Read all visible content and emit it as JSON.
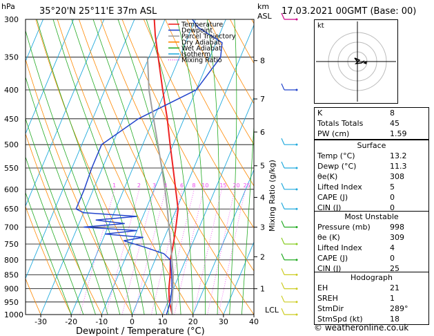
{
  "header": {
    "left": "35°20'N  25°11'E  37m  ASL",
    "right": "17.03.2021  00GMT  (Base: 00)",
    "hpa_label": "hPa",
    "km_label": "km",
    "asl_label": "ASL"
  },
  "legend": [
    "Temperature",
    "Dewpoint",
    "Parcel Trajectory",
    "Dry Adiabat",
    "Wet Adiabat",
    "Isotherm",
    "Mixing Ratio"
  ],
  "colors": {
    "temperature": "#ee2222",
    "dewpoint": "#2244cc",
    "parcel": "#a0a0a0",
    "dry_adiabat": "#ff8800",
    "wet_adiabat": "#22aa22",
    "isotherm": "#22aadd",
    "mixing_ratio": "#ee44ee"
  },
  "chart_data": {
    "type": "line",
    "xlabel": "Dewpoint / Temperature (°C)",
    "ylabel": "Mixing Ratio (g/kg)",
    "xlim": [
      -35,
      40
    ],
    "ylim_hpa": [
      1000,
      300
    ],
    "x_ticks": [
      -30,
      -20,
      -10,
      0,
      10,
      20,
      30,
      40
    ],
    "pressure_ticks": [
      300,
      350,
      400,
      450,
      500,
      550,
      600,
      650,
      700,
      750,
      800,
      850,
      900,
      950,
      1000
    ],
    "km_ticks": [
      {
        "km": "1",
        "p": 900
      },
      {
        "km": "2",
        "p": 790
      },
      {
        "km": "3",
        "p": 700
      },
      {
        "km": "4",
        "p": 620
      },
      {
        "km": "5",
        "p": 545
      },
      {
        "km": "6",
        "p": 475
      },
      {
        "km": "7",
        "p": 415
      },
      {
        "km": "8",
        "p": 355
      }
    ],
    "lcl_label": "LCL",
    "mixing_ratio_labels": [
      "1",
      "2",
      "3",
      "4",
      "6",
      "8",
      "10",
      "15",
      "20",
      "25"
    ],
    "series": [
      {
        "name": "Temperature",
        "points": [
          [
            1000,
            13.2
          ],
          [
            950,
            10.5
          ],
          [
            900,
            8.5
          ],
          [
            850,
            7.0
          ],
          [
            800,
            5.0
          ],
          [
            750,
            3.8
          ],
          [
            700,
            2.3
          ],
          [
            650,
            0.5
          ],
          [
            600,
            -3.0
          ],
          [
            550,
            -6.8
          ],
          [
            500,
            -11.0
          ],
          [
            450,
            -15.5
          ],
          [
            400,
            -21.0
          ],
          [
            350,
            -27.0
          ],
          [
            320,
            -31.0
          ],
          [
            300,
            -33.5
          ]
        ]
      },
      {
        "name": "Dewpoint",
        "points": [
          [
            1000,
            11.3
          ],
          [
            950,
            10.8
          ],
          [
            900,
            9.5
          ],
          [
            850,
            7.5
          ],
          [
            800,
            5.0
          ],
          [
            780,
            2.0
          ],
          [
            760,
            -5.0
          ],
          [
            740,
            -13.0
          ],
          [
            730,
            -7.0
          ],
          [
            720,
            -20.0
          ],
          [
            710,
            -10.0
          ],
          [
            700,
            -28.0
          ],
          [
            690,
            -15.0
          ],
          [
            680,
            -25.0
          ],
          [
            670,
            -12.0
          ],
          [
            660,
            -30.0
          ],
          [
            650,
            -33.0
          ],
          [
            600,
            -33.0
          ],
          [
            550,
            -33.5
          ],
          [
            500,
            -33.5
          ],
          [
            450,
            -25.0
          ],
          [
            400,
            -10.0
          ],
          [
            350,
            -6.5
          ],
          [
            330,
            -8.0
          ],
          [
            310,
            -18.0
          ],
          [
            300,
            -21.0
          ]
        ]
      },
      {
        "name": "Parcel Trajectory",
        "points": [
          [
            1000,
            13.2
          ],
          [
            970,
            12.0
          ],
          [
            900,
            9.8
          ],
          [
            850,
            8.0
          ],
          [
            800,
            5.5
          ],
          [
            750,
            3.0
          ],
          [
            700,
            0.0
          ],
          [
            650,
            -3.0
          ],
          [
            600,
            -6.5
          ],
          [
            550,
            -10.5
          ],
          [
            500,
            -15.0
          ],
          [
            450,
            -20.0
          ],
          [
            400,
            -25.5
          ],
          [
            350,
            -30.5
          ]
        ]
      }
    ]
  },
  "hodograph": {
    "label": "kt"
  },
  "indices": {
    "rows": [
      {
        "k": "K",
        "v": "8"
      },
      {
        "k": "Totals Totals",
        "v": "45"
      },
      {
        "k": "PW (cm)",
        "v": "1.59"
      }
    ],
    "surface": {
      "title": "Surface",
      "rows": [
        {
          "k": "Temp (°C)",
          "v": "13.2"
        },
        {
          "k": "Dewp (°C)",
          "v": "11.3"
        },
        {
          "k": "θe(K)",
          "v": "308"
        },
        {
          "k": "Lifted Index",
          "v": "5"
        },
        {
          "k": "CAPE (J)",
          "v": "0"
        },
        {
          "k": "CIN (J)",
          "v": "0"
        }
      ]
    },
    "unstable": {
      "title": "Most Unstable",
      "rows": [
        {
          "k": "Pressure (mb)",
          "v": "998"
        },
        {
          "k": "θe (K)",
          "v": "309"
        },
        {
          "k": "Lifted Index",
          "v": "4"
        },
        {
          "k": "CAPE (J)",
          "v": "0"
        },
        {
          "k": "CIN (J)",
          "v": "25"
        }
      ]
    },
    "hodo": {
      "title": "Hodograph",
      "rows": [
        {
          "k": "EH",
          "v": "21"
        },
        {
          "k": "SREH",
          "v": "1"
        },
        {
          "k": "StmDir",
          "v": "289°"
        },
        {
          "k": "StmSpd (kt)",
          "v": "18"
        }
      ]
    }
  },
  "copyright": "© weatheronline.co.uk"
}
